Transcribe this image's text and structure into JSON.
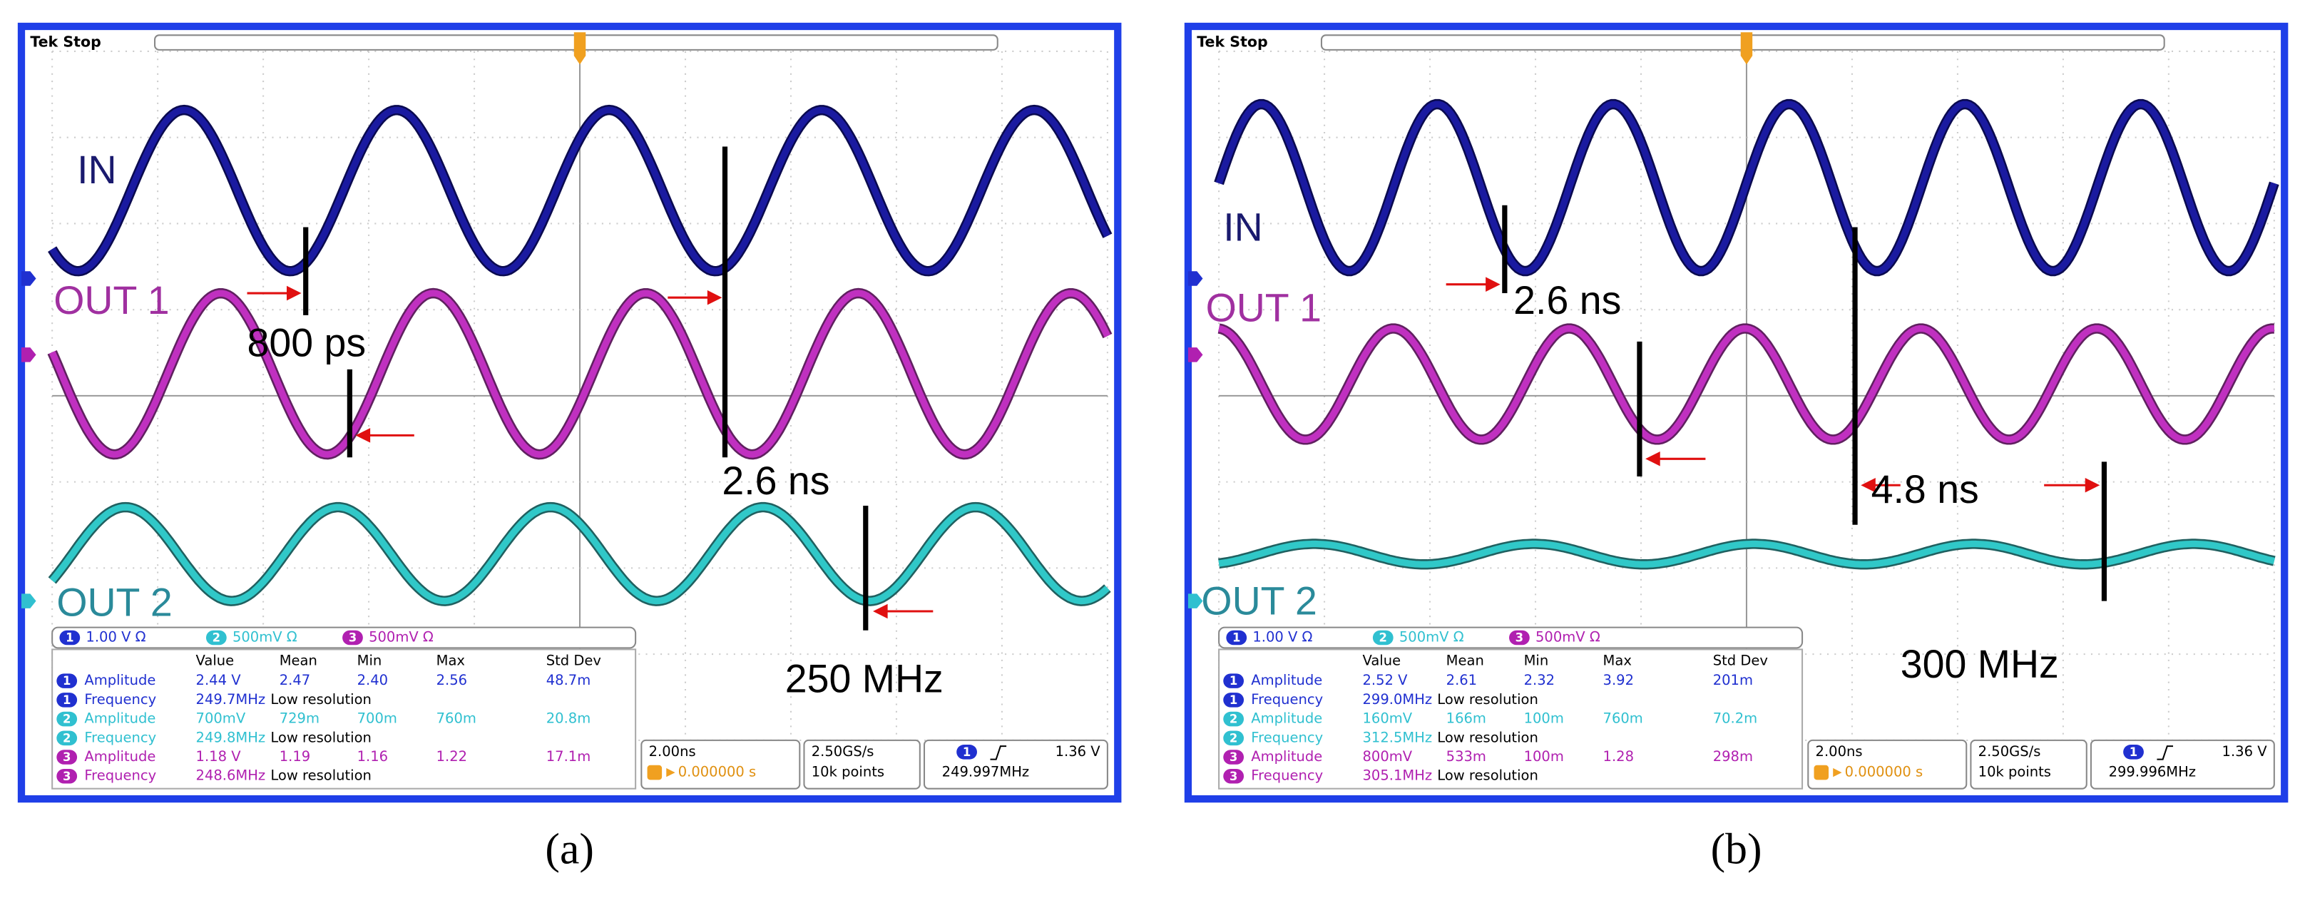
{
  "panels": [
    {
      "caption": "(a)",
      "header": "Tek Stop",
      "trace_labels": [
        "IN",
        "OUT 1",
        "OUT 2"
      ],
      "annotations": [
        "800 ps",
        "2.6 ns",
        "250 MHz"
      ],
      "channels": [
        {
          "id": "1",
          "setting": "1.00 V Ω",
          "color": "#2030d0"
        },
        {
          "id": "2",
          "setting": "500mV Ω",
          "color": "#30c0d0"
        },
        {
          "id": "3",
          "setting": "500mV Ω",
          "color": "#b020b0"
        }
      ],
      "measurements": {
        "columns": [
          "Value",
          "Mean",
          "Min",
          "Max",
          "Std Dev"
        ],
        "rows": [
          {
            "ch": "1",
            "name": "Amplitude",
            "cells": [
              "2.44 V",
              "2.47",
              "2.40",
              "2.56",
              "48.7m"
            ]
          },
          {
            "ch": "1",
            "name": "Frequency",
            "cells": [
              "249.7MHz",
              "Low resolution"
            ]
          },
          {
            "ch": "2",
            "name": "Amplitude",
            "cells": [
              "700mV",
              "729m",
              "700m",
              "760m",
              "20.8m"
            ]
          },
          {
            "ch": "2",
            "name": "Frequency",
            "cells": [
              "249.8MHz",
              "Low resolution"
            ]
          },
          {
            "ch": "3",
            "name": "Amplitude",
            "cells": [
              "1.18 V",
              "1.19",
              "1.16",
              "1.22",
              "17.1m"
            ]
          },
          {
            "ch": "3",
            "name": "Frequency",
            "cells": [
              "248.6MHz",
              "Low resolution"
            ]
          }
        ]
      },
      "timebase": "2.00ns",
      "trigger_pos": "0.000000 s",
      "sample_rate": "2.50GS/s",
      "record": "10k points",
      "trigger_ch": "1",
      "trigger_level": "1.36 V",
      "trigger_freq": "249.997MHz"
    },
    {
      "caption": "(b)",
      "header": "Tek Stop",
      "trace_labels": [
        "IN",
        "OUT 1",
        "OUT 2"
      ],
      "annotations": [
        "2.6 ns",
        "4.8 ns",
        "300 MHz"
      ],
      "channels": [
        {
          "id": "1",
          "setting": "1.00 V Ω",
          "color": "#2030d0"
        },
        {
          "id": "2",
          "setting": "500mV Ω",
          "color": "#30c0d0"
        },
        {
          "id": "3",
          "setting": "500mV Ω",
          "color": "#b020b0"
        }
      ],
      "measurements": {
        "columns": [
          "Value",
          "Mean",
          "Min",
          "Max",
          "Std Dev"
        ],
        "rows": [
          {
            "ch": "1",
            "name": "Amplitude",
            "cells": [
              "2.52 V",
              "2.61",
              "2.32",
              "3.92",
              "201m"
            ]
          },
          {
            "ch": "1",
            "name": "Frequency",
            "cells": [
              "299.0MHz",
              "Low resolution"
            ]
          },
          {
            "ch": "2",
            "name": "Amplitude",
            "cells": [
              "160mV",
              "166m",
              "100m",
              "760m",
              "70.2m"
            ]
          },
          {
            "ch": "2",
            "name": "Frequency",
            "cells": [
              "312.5MHz",
              "Low resolution"
            ]
          },
          {
            "ch": "3",
            "name": "Amplitude",
            "cells": [
              "800mV",
              "533m",
              "100m",
              "1.28",
              "298m"
            ]
          },
          {
            "ch": "3",
            "name": "Frequency",
            "cells": [
              "305.1MHz",
              "Low resolution"
            ]
          }
        ]
      },
      "timebase": "2.00ns",
      "trigger_pos": "0.000000 s",
      "sample_rate": "2.50GS/s",
      "record": "10k points",
      "trigger_ch": "1",
      "trigger_level": "1.36 V",
      "trigger_freq": "299.996MHz"
    }
  ]
}
